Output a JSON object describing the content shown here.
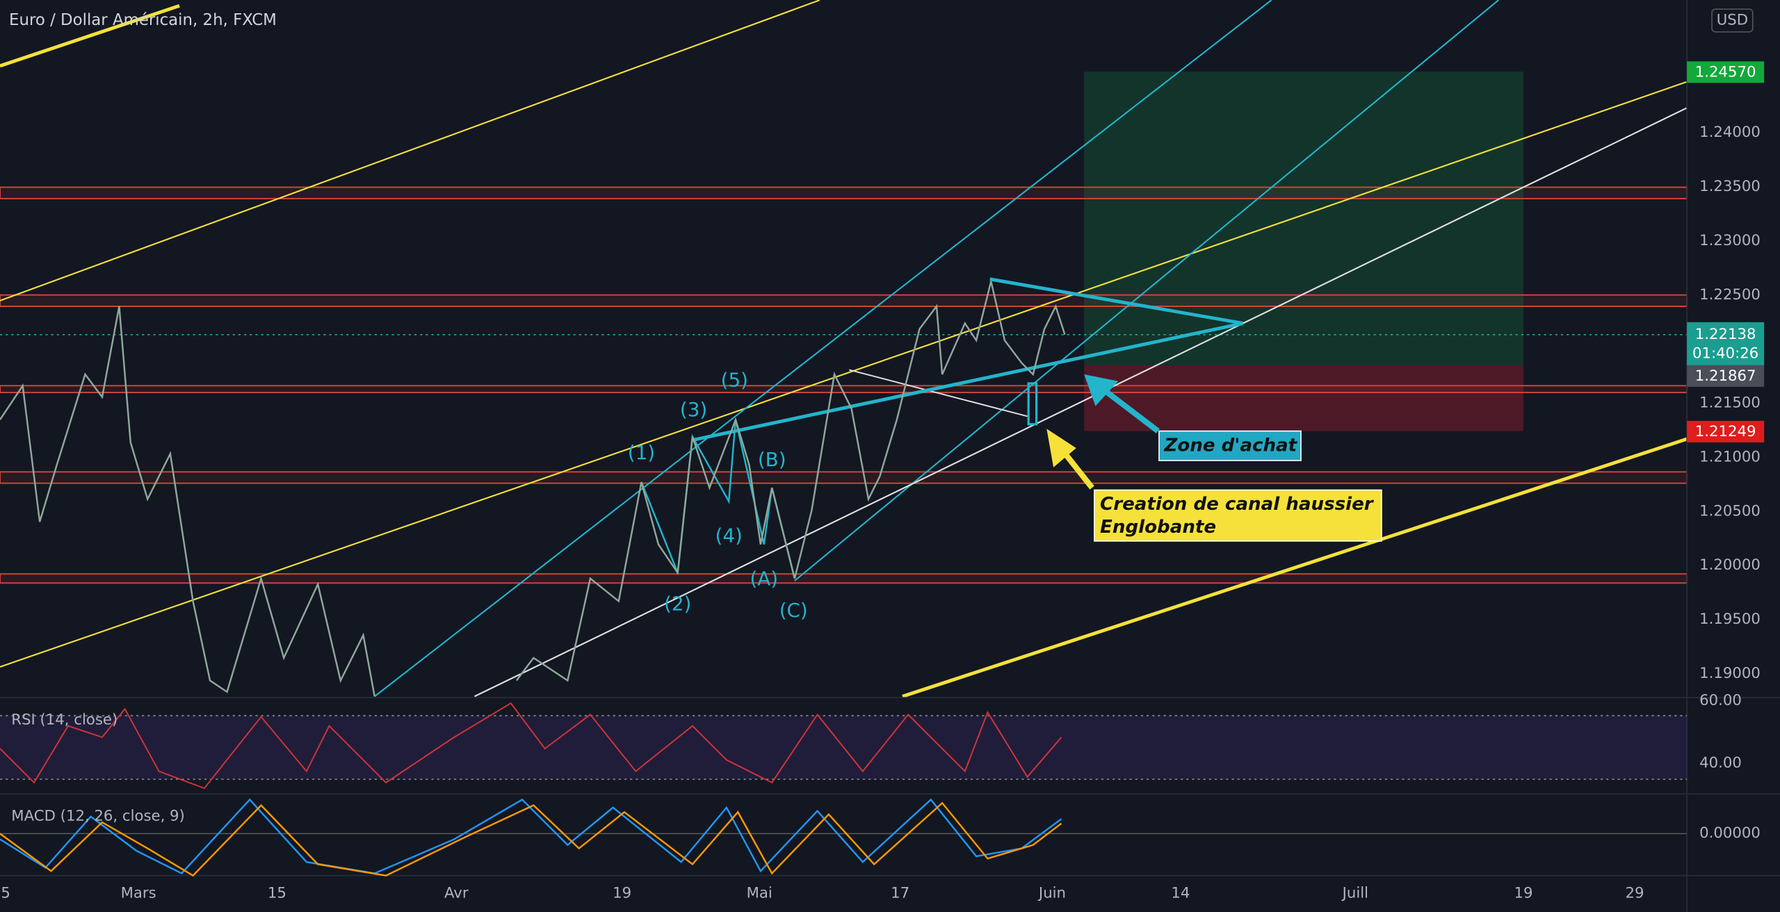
{
  "header": {
    "symbol": "Euro / Dollar Américain, 2h, FXCM",
    "currency": "USD"
  },
  "price_axis": [
    "1.24000",
    "1.23500",
    "1.23000",
    "1.22500",
    "1.21500",
    "1.21000",
    "1.20500",
    "1.20000",
    "1.19500",
    "1.19000"
  ],
  "price_tags": {
    "target": "1.24570",
    "last": "1.22138",
    "countdown": "01:40:26",
    "entry": "1.21867",
    "stop": "1.21249"
  },
  "rsi": {
    "title": "RSI (14, close)",
    "ticks": [
      "60.00",
      "40.00"
    ]
  },
  "macd": {
    "title": "MACD (12, 26, close, 9)",
    "ticks": [
      "0.00000"
    ]
  },
  "time_axis": [
    "5",
    "Mars",
    "15",
    "Avr",
    "19",
    "Mai",
    "17",
    "Juin",
    "14",
    "Juill",
    "19",
    "29"
  ],
  "waves": [
    "(1)",
    "(2)",
    "(3)",
    "(4)",
    "(5)",
    "(A)",
    "(B)",
    "(C)"
  ],
  "annotations": {
    "buy_zone": "Zone d'achat",
    "channel_line1": "Creation de canal haussier",
    "channel_line2": "Englobante"
  }
}
